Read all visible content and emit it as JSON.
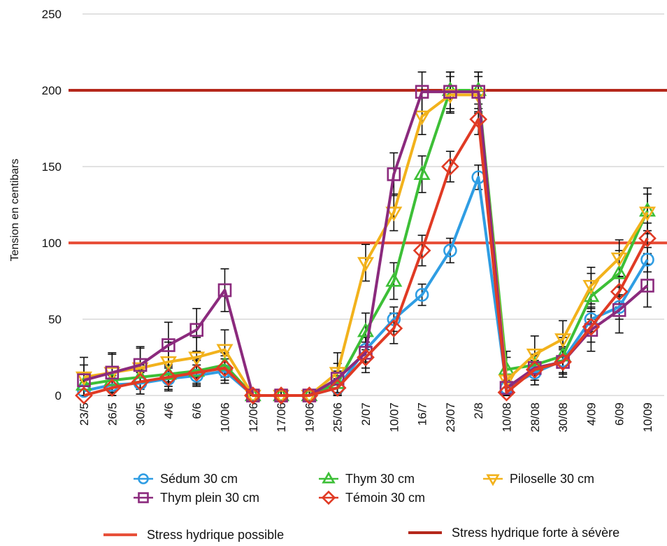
{
  "chart_data": {
    "type": "line",
    "title": "",
    "xlabel": "",
    "ylabel": "Tension en centibars",
    "ylim": [
      0,
      250
    ],
    "yticks": [
      0,
      50,
      100,
      150,
      200,
      250
    ],
    "grid": true,
    "legend_position": "bottom",
    "categories": [
      "23/5",
      "26/5",
      "30/5",
      "4/6",
      "6/6",
      "10/06",
      "12/06",
      "17/06",
      "19/06",
      "25/06",
      "2/07",
      "10/07",
      "16/7",
      "23/07",
      "2/8",
      "10/08",
      "28/08",
      "30/08",
      "4/09",
      "6/09",
      "10/09"
    ],
    "series": [
      {
        "name": "Sédum 30 cm",
        "color": "#2f9de3",
        "marker": "circle",
        "values": [
          3,
          7,
          8,
          11,
          13,
          16,
          0,
          0,
          0,
          5,
          30,
          50,
          66,
          95,
          143,
          5,
          15,
          23,
          50,
          58,
          89
        ],
        "errors": [
          7,
          8,
          7,
          8,
          7,
          8,
          3,
          3,
          3,
          6,
          8,
          8,
          7,
          8,
          8,
          8,
          8,
          8,
          8,
          8,
          8
        ]
      },
      {
        "name": "Thym 30 cm",
        "color": "#3dbf37",
        "marker": "triangle-up",
        "values": [
          7,
          10,
          12,
          14,
          16,
          20,
          0,
          0,
          0,
          8,
          42,
          75,
          145,
          200,
          200,
          17,
          20,
          26,
          65,
          80,
          121
        ],
        "errors": [
          8,
          8,
          8,
          8,
          8,
          8,
          3,
          3,
          3,
          8,
          12,
          12,
          12,
          12,
          12,
          12,
          10,
          12,
          15,
          15,
          15
        ]
      },
      {
        "name": "Piloselle 30 cm",
        "color": "#f2b21c",
        "marker": "triangle-down",
        "values": [
          12,
          15,
          18,
          22,
          25,
          30,
          0,
          0,
          0,
          15,
          87,
          120,
          183,
          197,
          197,
          10,
          27,
          37,
          72,
          90,
          120
        ],
        "errors": [
          13,
          13,
          13,
          13,
          13,
          13,
          4,
          4,
          4,
          13,
          12,
          12,
          12,
          12,
          12,
          15,
          12,
          12,
          12,
          12,
          12
        ]
      },
      {
        "name": "Thym plein 30 cm",
        "color": "#8b2a7d",
        "marker": "square",
        "values": [
          10,
          15,
          20,
          33,
          43,
          69,
          0,
          0,
          0,
          11,
          28,
          145,
          199,
          199,
          199,
          5,
          18,
          22,
          43,
          56,
          72
        ],
        "errors": [
          10,
          12,
          12,
          15,
          14,
          14,
          3,
          3,
          3,
          10,
          10,
          14,
          13,
          13,
          13,
          8,
          8,
          8,
          14,
          15,
          14
        ]
      },
      {
        "name": "Témoin 30 cm",
        "color": "#e03a24",
        "marker": "diamond",
        "values": [
          0,
          5,
          9,
          12,
          15,
          18,
          0,
          0,
          0,
          5,
          25,
          44,
          95,
          150,
          181,
          2,
          17,
          22,
          45,
          68,
          103
        ],
        "errors": [
          6,
          8,
          8,
          8,
          8,
          8,
          3,
          3,
          3,
          8,
          10,
          10,
          10,
          10,
          10,
          8,
          10,
          10,
          10,
          10,
          10
        ]
      }
    ],
    "reference_lines": [
      {
        "name": "Stress hydrique possible",
        "value": 100,
        "color": "#e8503a"
      },
      {
        "name": "Stress hydrique forte à sévère",
        "value": 200,
        "color": "#b5281c"
      }
    ]
  }
}
